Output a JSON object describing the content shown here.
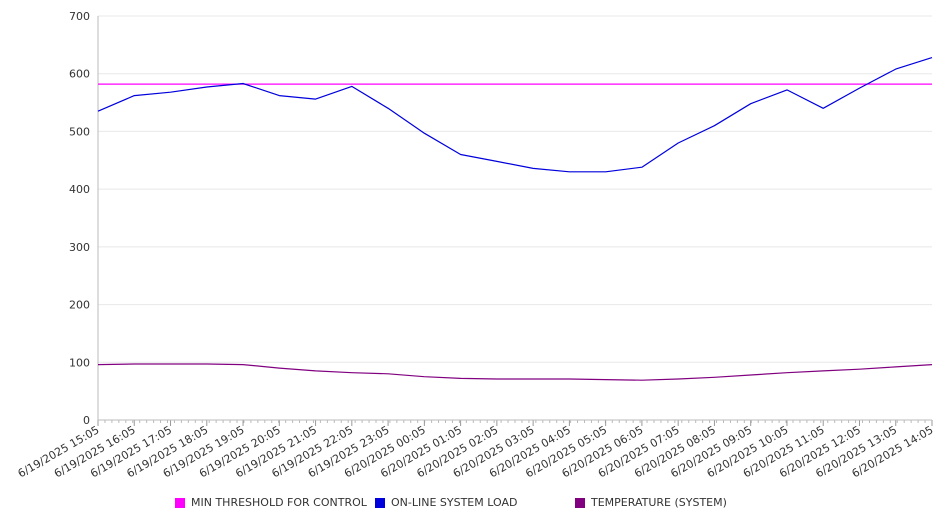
{
  "chart_data": {
    "type": "line",
    "ylim": [
      0,
      700
    ],
    "yticks": [
      0,
      100,
      200,
      300,
      400,
      500,
      600,
      700
    ],
    "grid": true,
    "legend_position": "bottom",
    "categories": [
      "6/19/2025 15:05",
      "6/19/2025 16:05",
      "6/19/2025 17:05",
      "6/19/2025 18:05",
      "6/19/2025 19:05",
      "6/19/2025 20:05",
      "6/19/2025 21:05",
      "6/19/2025 22:05",
      "6/19/2025 23:05",
      "6/20/2025 00:05",
      "6/20/2025 01:05",
      "6/20/2025 02:05",
      "6/20/2025 03:05",
      "6/20/2025 04:05",
      "6/20/2025 05:05",
      "6/20/2025 06:05",
      "6/20/2025 07:05",
      "6/20/2025 08:05",
      "6/20/2025 09:05",
      "6/20/2025 10:05",
      "6/20/2025 11:05",
      "6/20/2025 12:05",
      "6/20/2025 13:05",
      "6/20/2025 14:05"
    ],
    "series": [
      {
        "name": "MIN THRESHOLD FOR CONTROL",
        "color": "#ff00ff",
        "values": [
          582,
          582,
          582,
          582,
          582,
          582,
          582,
          582,
          582,
          582,
          582,
          582,
          582,
          582,
          582,
          582,
          582,
          582,
          582,
          582,
          582,
          582,
          582,
          582
        ]
      },
      {
        "name": "ON-LINE SYSTEM LOAD",
        "color": "#0000dd",
        "values": [
          535,
          562,
          568,
          577,
          583,
          562,
          556,
          578,
          540,
          497,
          460,
          448,
          436,
          430,
          430,
          438,
          480,
          510,
          548,
          572,
          540,
          575,
          608,
          628
        ]
      },
      {
        "name": "TEMPERATURE (SYSTEM)",
        "color": "#800080",
        "values": [
          96,
          97,
          97,
          97,
          96,
          90,
          85,
          82,
          80,
          75,
          72,
          71,
          71,
          71,
          70,
          69,
          71,
          74,
          78,
          82,
          85,
          88,
          92,
          96
        ]
      }
    ]
  }
}
